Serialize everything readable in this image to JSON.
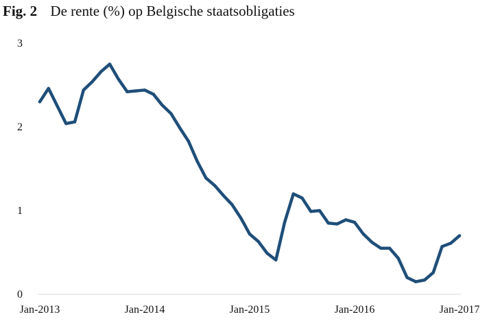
{
  "figure": {
    "label": "Fig. 2",
    "caption": "De rente (%) op Belgische staatsobligaties"
  },
  "colors": {
    "line": "#1f4e79",
    "axis": "#d9d9d9"
  },
  "chart_data": {
    "type": "line",
    "title": "De rente (%) op Belgische staatsobligaties",
    "xlabel": "",
    "ylabel": "",
    "ylim": [
      0,
      3
    ],
    "yticks": [
      0,
      1,
      2,
      3
    ],
    "x_ticks": [
      "Jan-2013",
      "Jan-2014",
      "Jan-2015",
      "Jan-2016",
      "Jan-2017"
    ],
    "grid": false,
    "legend": "none",
    "series": [
      {
        "x": [
          "2013-01",
          "2013-02",
          "2013-03",
          "2013-04",
          "2013-05",
          "2013-06",
          "2013-07",
          "2013-08",
          "2013-09",
          "2013-10",
          "2013-11",
          "2013-12",
          "2014-01",
          "2014-02",
          "2014-03",
          "2014-04",
          "2014-05",
          "2014-06",
          "2014-07",
          "2014-08",
          "2014-09",
          "2014-10",
          "2014-11",
          "2014-12",
          "2015-01",
          "2015-02",
          "2015-03",
          "2015-04",
          "2015-05",
          "2015-06",
          "2015-07",
          "2015-08",
          "2015-09",
          "2015-10",
          "2015-11",
          "2015-12",
          "2016-01",
          "2016-02",
          "2016-03",
          "2016-04",
          "2016-05",
          "2016-06",
          "2016-07",
          "2016-08",
          "2016-09",
          "2016-10",
          "2016-11",
          "2016-12",
          "2017-01"
        ],
        "values": [
          2.3,
          2.46,
          2.25,
          2.04,
          2.06,
          2.44,
          2.54,
          2.66,
          2.75,
          2.57,
          2.42,
          2.43,
          2.44,
          2.39,
          2.26,
          2.16,
          1.99,
          1.83,
          1.59,
          1.39,
          1.3,
          1.18,
          1.07,
          0.91,
          0.72,
          0.63,
          0.49,
          0.41,
          0.86,
          1.2,
          1.15,
          0.99,
          1.0,
          0.85,
          0.84,
          0.89,
          0.86,
          0.72,
          0.62,
          0.55,
          0.55,
          0.43,
          0.2,
          0.15,
          0.17,
          0.26,
          0.57,
          0.61,
          0.7
        ]
      }
    ]
  }
}
